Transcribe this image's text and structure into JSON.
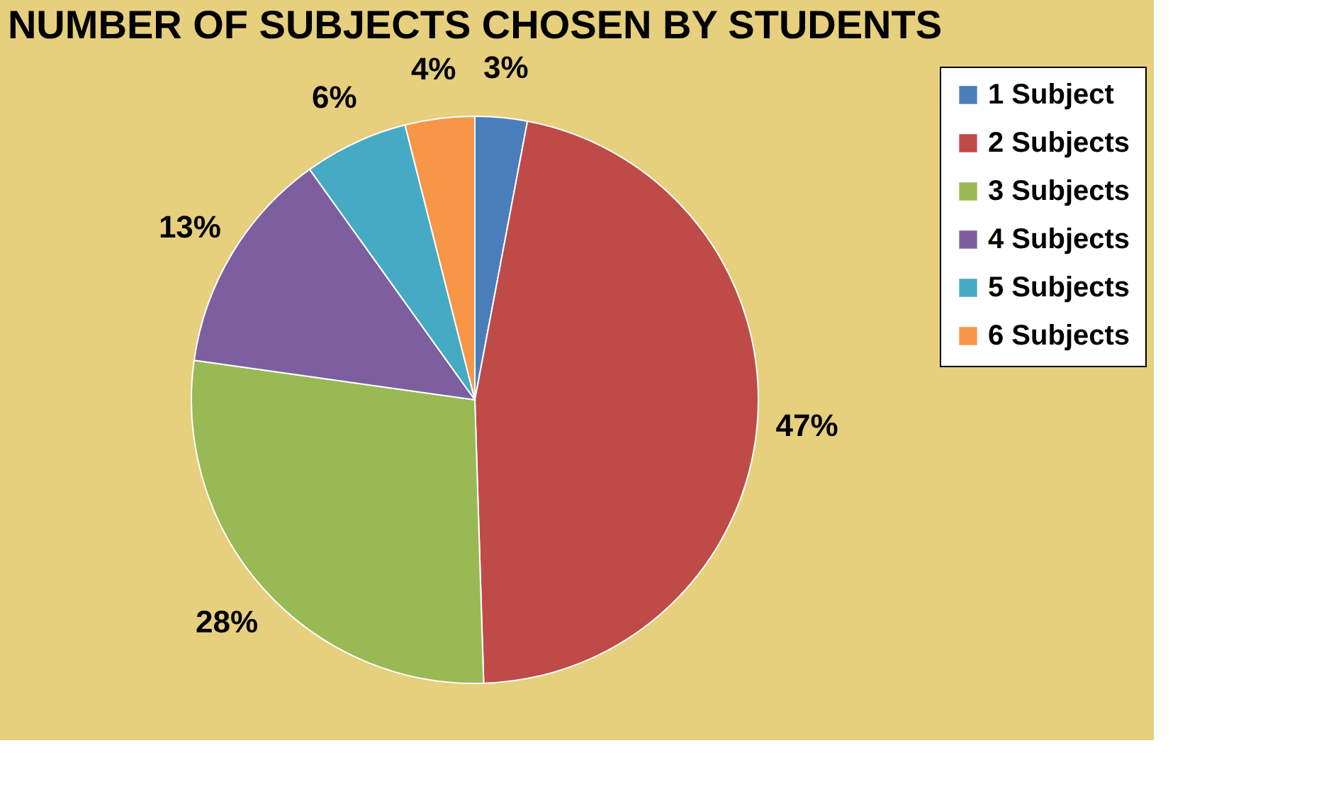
{
  "chart_data": {
    "type": "pie",
    "title": "NUMBER OF SUBJECTS CHOSEN BY STUDENTS",
    "categories": [
      "1 Subject",
      "2 Subjects",
      "3 Subjects",
      "4 Subjects",
      "5 Subjects",
      "6 Subjects"
    ],
    "values": [
      3,
      47,
      28,
      13,
      6,
      4
    ],
    "value_labels": [
      "3%",
      "47%",
      "28%",
      "13%",
      "6%",
      "4%"
    ],
    "colors": [
      "#4a7ebb",
      "#be4b48",
      "#98b954",
      "#7d5fa0",
      "#46aac5",
      "#f79646"
    ],
    "legend": "right"
  }
}
